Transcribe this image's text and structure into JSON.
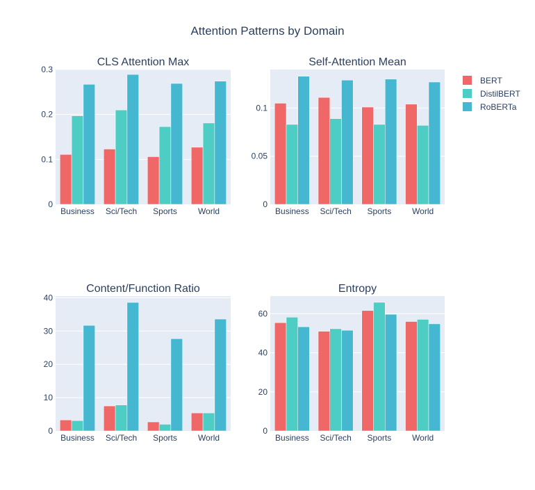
{
  "figure": {
    "title": "Attention Patterns by Domain"
  },
  "legend": {
    "position": "right",
    "items": [
      {
        "name": "BERT",
        "color": "#ef6767"
      },
      {
        "name": "DistilBERT",
        "color": "#4ecdc4"
      },
      {
        "name": "RoBERTa",
        "color": "#45b7d1"
      }
    ]
  },
  "style": {
    "plot_bg": "#e5ecf6",
    "grid": "#ffffff",
    "text": "#2a3f5f"
  },
  "chart_data": [
    {
      "type": "bar",
      "title": "CLS Attention Max",
      "categories": [
        "Business",
        "Sci/Tech",
        "Sports",
        "World"
      ],
      "ylim": [
        0,
        0.3
      ],
      "yticks": [
        0,
        0.1,
        0.2,
        0.3
      ],
      "ytick_labels": [
        "0",
        "0.1",
        "0.2",
        "0.3"
      ],
      "series": [
        {
          "name": "BERT",
          "values": [
            0.111,
            0.123,
            0.106,
            0.127
          ]
        },
        {
          "name": "DistilBERT",
          "values": [
            0.197,
            0.21,
            0.173,
            0.181
          ]
        },
        {
          "name": "RoBERTa",
          "values": [
            0.267,
            0.289,
            0.269,
            0.274
          ]
        }
      ]
    },
    {
      "type": "bar",
      "title": "Self-Attention Mean",
      "categories": [
        "Business",
        "Sci/Tech",
        "Sports",
        "World"
      ],
      "ylim": [
        0,
        0.14
      ],
      "yticks": [
        0,
        0.05,
        0.1
      ],
      "ytick_labels": [
        "0",
        "0.05",
        "0.1"
      ],
      "series": [
        {
          "name": "BERT",
          "values": [
            0.105,
            0.111,
            0.101,
            0.104
          ]
        },
        {
          "name": "DistilBERT",
          "values": [
            0.083,
            0.089,
            0.083,
            0.082
          ]
        },
        {
          "name": "RoBERTa",
          "values": [
            0.133,
            0.129,
            0.13,
            0.127
          ]
        }
      ]
    },
    {
      "type": "bar",
      "title": "Content/Function Ratio",
      "categories": [
        "Business",
        "Sci/Tech",
        "Sports",
        "World"
      ],
      "ylim": [
        0,
        40.5
      ],
      "yticks": [
        0,
        10,
        20,
        30,
        40
      ],
      "ytick_labels": [
        "0",
        "10",
        "20",
        "30",
        "40"
      ],
      "series": [
        {
          "name": "BERT",
          "values": [
            3.3,
            7.5,
            2.7,
            5.4
          ]
        },
        {
          "name": "DistilBERT",
          "values": [
            3.1,
            7.8,
            2.0,
            5.4
          ]
        },
        {
          "name": "RoBERTa",
          "values": [
            31.7,
            38.6,
            27.7,
            33.6
          ]
        }
      ]
    },
    {
      "type": "bar",
      "title": "Entropy",
      "categories": [
        "Business",
        "Sci/Tech",
        "Sports",
        "World"
      ],
      "ylim": [
        0,
        69
      ],
      "yticks": [
        0,
        20,
        40,
        60
      ],
      "ytick_labels": [
        "0",
        "20",
        "40",
        "60"
      ],
      "series": [
        {
          "name": "BERT",
          "values": [
            55.4,
            51.0,
            61.6,
            56.0
          ]
        },
        {
          "name": "DistilBERT",
          "values": [
            58.2,
            52.3,
            65.8,
            57.1
          ]
        },
        {
          "name": "RoBERTa",
          "values": [
            53.3,
            51.5,
            59.7,
            54.8
          ]
        }
      ]
    }
  ]
}
